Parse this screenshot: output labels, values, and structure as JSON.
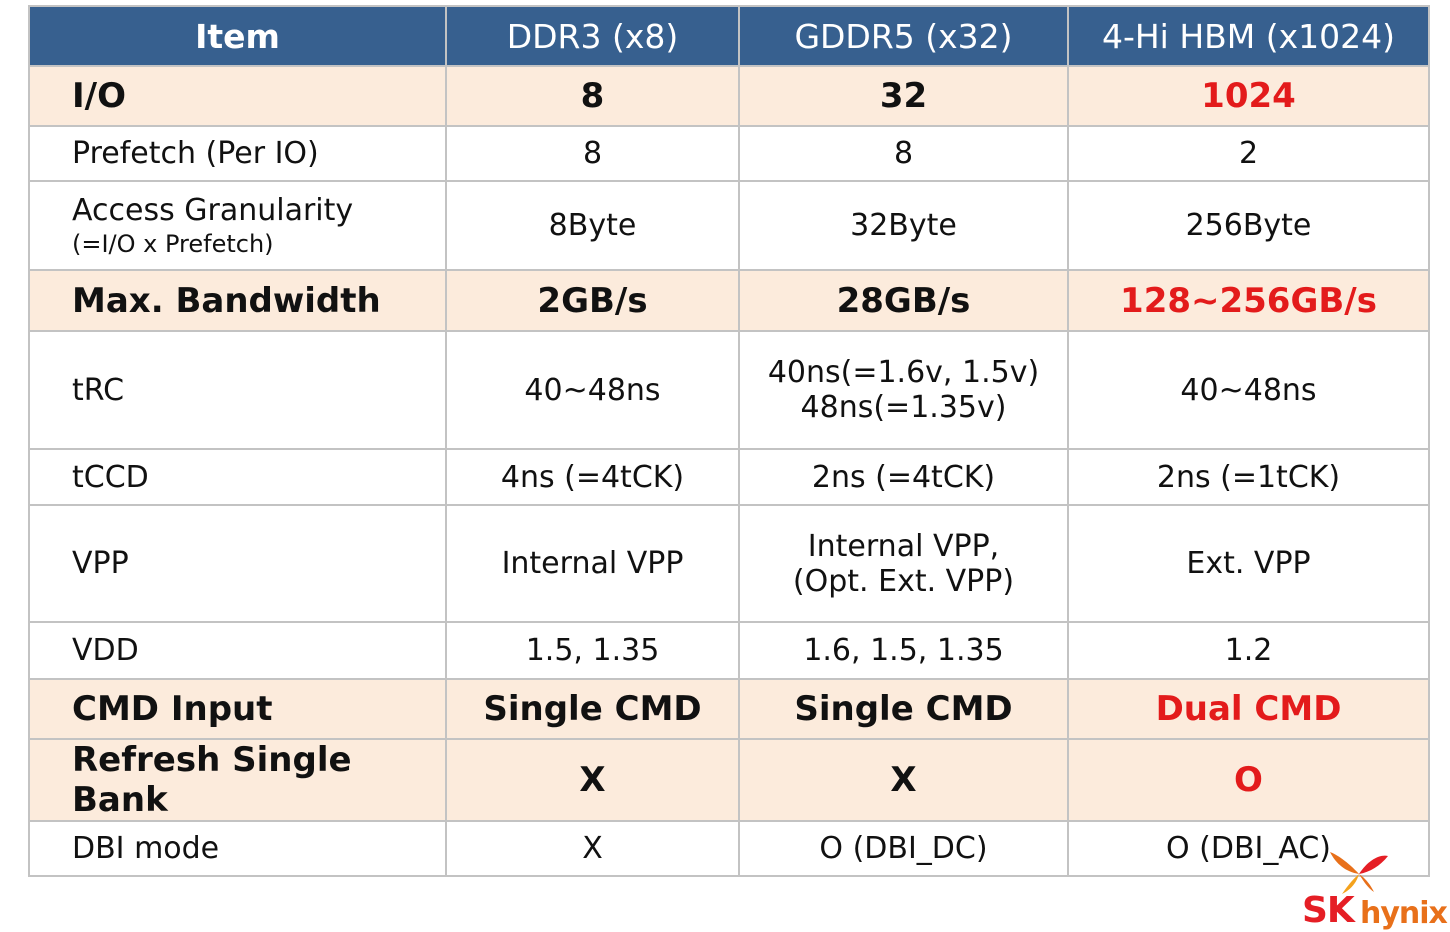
{
  "table": {
    "headers": [
      "Item",
      "DDR3 (x8)",
      "GDDR5 (x32)",
      "4-Hi HBM (x1024)"
    ],
    "rows": [
      {
        "label": "I/O",
        "label_sub": "",
        "values": [
          [
            "8"
          ],
          [
            "32"
          ],
          [
            "1024"
          ]
        ]
      },
      {
        "label": "Prefetch (Per IO)",
        "label_sub": "",
        "values": [
          [
            "8"
          ],
          [
            "8"
          ],
          [
            "2"
          ]
        ]
      },
      {
        "label": "Access Granularity",
        "label_sub": "(=I/O x Prefetch)",
        "values": [
          [
            "8Byte"
          ],
          [
            "32Byte"
          ],
          [
            "256Byte"
          ]
        ]
      },
      {
        "label": "Max. Bandwidth",
        "label_sub": "",
        "values": [
          [
            "2GB/s"
          ],
          [
            "28GB/s"
          ],
          [
            "128~256GB/s"
          ]
        ]
      },
      {
        "label": "tRC",
        "label_sub": "",
        "values": [
          [
            "40~48ns"
          ],
          [
            "40ns(=1.6v, 1.5v)",
            "48ns(=1.35v)"
          ],
          [
            "40~48ns"
          ]
        ]
      },
      {
        "label": "tCCD",
        "label_sub": "",
        "values": [
          [
            "4ns (=4tCK)"
          ],
          [
            "2ns (=4tCK)"
          ],
          [
            "2ns (=1tCK)"
          ]
        ]
      },
      {
        "label": "VPP",
        "label_sub": "",
        "values": [
          [
            "Internal VPP"
          ],
          [
            "Internal VPP,",
            "(Opt. Ext. VPP)"
          ],
          [
            "Ext. VPP"
          ]
        ]
      },
      {
        "label": "VDD",
        "label_sub": "",
        "values": [
          [
            "1.5, 1.35"
          ],
          [
            "1.6, 1.5, 1.35"
          ],
          [
            "1.2"
          ]
        ]
      },
      {
        "label": "CMD Input",
        "label_sub": "",
        "values": [
          [
            "Single CMD"
          ],
          [
            "Single CMD"
          ],
          [
            "Dual CMD"
          ]
        ]
      },
      {
        "label": "Refresh Single Bank",
        "label_sub": "",
        "values": [
          [
            "X"
          ],
          [
            "X"
          ],
          [
            "O"
          ]
        ]
      },
      {
        "label": "DBI mode",
        "label_sub": "",
        "values": [
          [
            "X"
          ],
          [
            "O (DBI_DC)"
          ],
          [
            "O (DBI_AC)"
          ]
        ]
      }
    ]
  },
  "logo": {
    "sk": "SK",
    "hynix": "hynix"
  },
  "colors": {
    "header_bg": "#37608f",
    "highlight_row_bg": "#fcebdc",
    "emphasis_red": "#e31b1b",
    "logo_red": "#e51e25",
    "logo_orange": "#e8701a"
  }
}
